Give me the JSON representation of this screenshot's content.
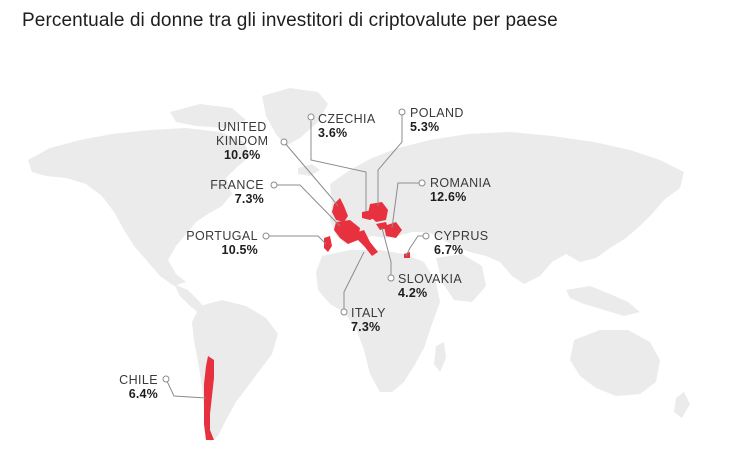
{
  "title": "Percentuale di donne tra gli investitori di criptovalute per paese",
  "colors": {
    "highlight": "#e8313f",
    "land": "#ebebeb",
    "leader": "#8c8c8c"
  },
  "countries": {
    "united_kingdom": {
      "name_line1": "UNITED",
      "name_line2": "KINDOM",
      "value": "10.6%"
    },
    "czechia": {
      "name": "CZECHIA",
      "value": "3.6%"
    },
    "poland": {
      "name": "POLAND",
      "value": "5.3%"
    },
    "france": {
      "name": "FRANCE",
      "value": "7.3%"
    },
    "romania": {
      "name": "ROMANIA",
      "value": "12.6%"
    },
    "portugal": {
      "name": "PORTUGAL",
      "value": "10.5%"
    },
    "cyprus": {
      "name": "CYPRUS",
      "value": "6.7%"
    },
    "slovakia": {
      "name": "SLOVAKIA",
      "value": "4.2%"
    },
    "italy": {
      "name": "ITALY",
      "value": "7.3%"
    },
    "chile": {
      "name": "CHILE",
      "value": "6.4%"
    }
  }
}
